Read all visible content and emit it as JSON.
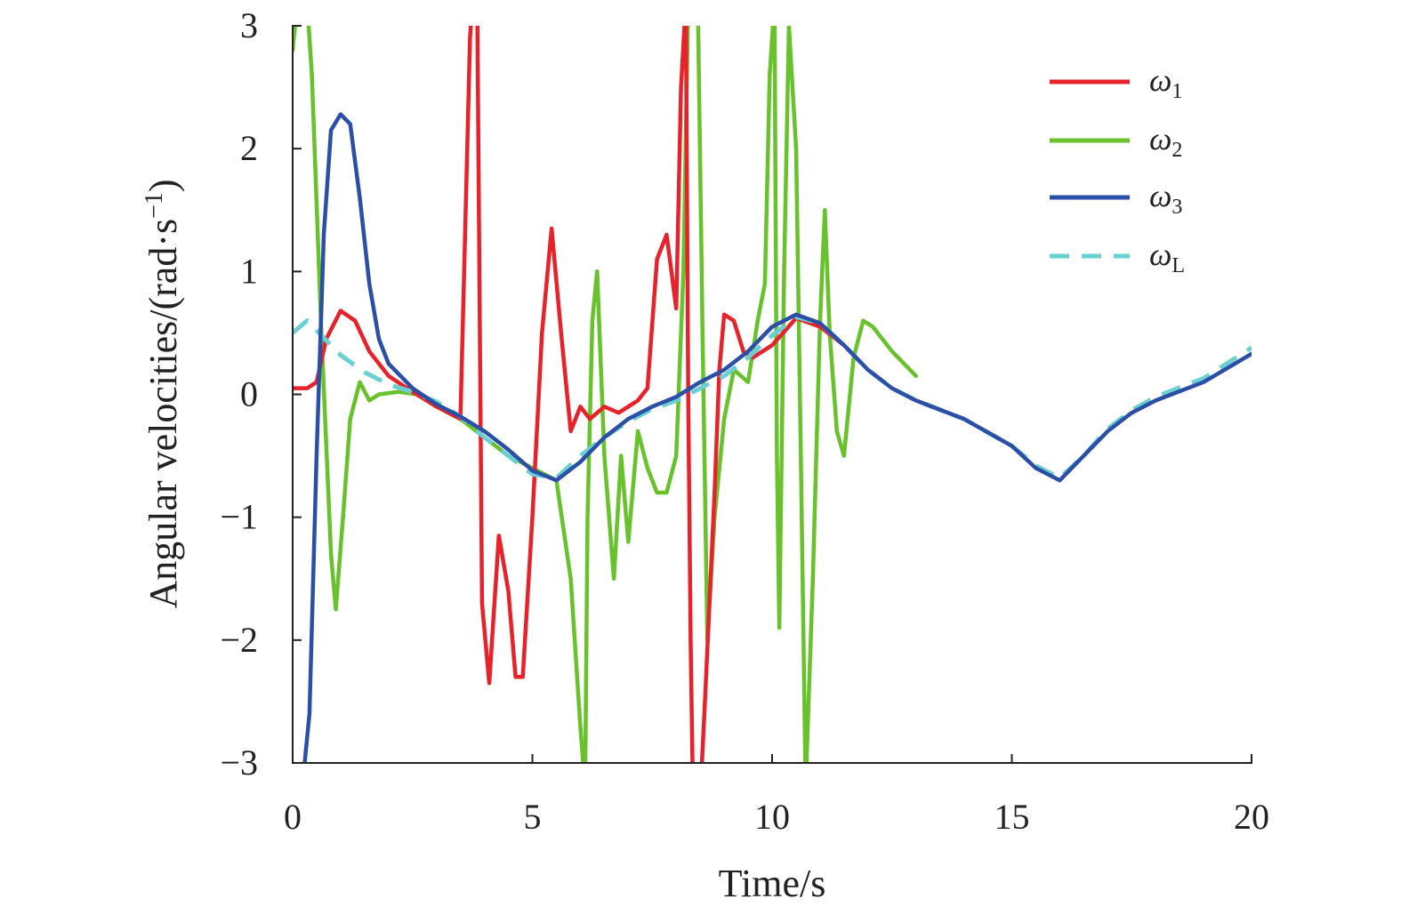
{
  "chart_data": {
    "type": "line",
    "title": "",
    "xlabel": "Time/s",
    "ylabel": "Angular velocities/(rad·s",
    "ylabel_sup": "−1",
    "ylabel_close": ")",
    "xlim": [
      0,
      20
    ],
    "ylim": [
      -3,
      3
    ],
    "xticks": [
      0,
      5,
      10,
      15,
      20
    ],
    "xtick_labels": [
      "0",
      "5",
      "10",
      "15",
      "20"
    ],
    "yticks": [
      -3,
      -2,
      -1,
      0,
      1,
      2,
      3
    ],
    "ytick_labels": [
      "−3",
      "−2",
      "−1",
      "0",
      "1",
      "2",
      "3"
    ],
    "grid": false,
    "legend_position": "top-right",
    "series": [
      {
        "name": "ω1",
        "symbol": "ω",
        "sub": "1",
        "color": "#e8222b",
        "dash": false,
        "points": [
          [
            0,
            0.05
          ],
          [
            0.3,
            0.05
          ],
          [
            0.5,
            0.1
          ],
          [
            0.7,
            0.45
          ],
          [
            1.0,
            0.68
          ],
          [
            1.3,
            0.6
          ],
          [
            1.6,
            0.35
          ],
          [
            2.0,
            0.15
          ],
          [
            2.5,
            0.02
          ],
          [
            3.0,
            -0.1
          ],
          [
            3.5,
            -0.2
          ],
          [
            3.7,
            2.9
          ],
          [
            3.75,
            3.2
          ],
          [
            3.85,
            3.2
          ],
          [
            3.95,
            -1.7
          ],
          [
            4.1,
            -2.35
          ],
          [
            4.3,
            -1.15
          ],
          [
            4.5,
            -1.6
          ],
          [
            4.65,
            -2.3
          ],
          [
            4.8,
            -2.3
          ],
          [
            5.0,
            -1.0
          ],
          [
            5.2,
            0.5
          ],
          [
            5.4,
            1.35
          ],
          [
            5.6,
            0.5
          ],
          [
            5.8,
            -0.3
          ],
          [
            6.0,
            -0.1
          ],
          [
            6.2,
            -0.2
          ],
          [
            6.5,
            -0.1
          ],
          [
            6.8,
            -0.15
          ],
          [
            7.0,
            -0.1
          ],
          [
            7.2,
            -0.05
          ],
          [
            7.4,
            0.05
          ],
          [
            7.6,
            1.1
          ],
          [
            7.8,
            1.3
          ],
          [
            7.9,
            1.0
          ],
          [
            8.0,
            0.7
          ],
          [
            8.1,
            2.5
          ],
          [
            8.2,
            3.2
          ],
          [
            8.25,
            0.0
          ],
          [
            8.3,
            -2.0
          ],
          [
            8.35,
            -3.3
          ],
          [
            8.5,
            -3.3
          ],
          [
            8.6,
            -2.5
          ],
          [
            8.8,
            -0.8
          ],
          [
            8.9,
            0.2
          ],
          [
            9.0,
            0.65
          ],
          [
            9.2,
            0.6
          ],
          [
            9.4,
            0.35
          ],
          [
            9.6,
            0.3
          ],
          [
            10.0,
            0.4
          ],
          [
            10.5,
            0.62
          ],
          [
            11.0,
            0.55
          ],
          [
            11.5,
            0.4
          ]
        ]
      },
      {
        "name": "ω2",
        "symbol": "ω",
        "sub": "2",
        "color": "#67c22b",
        "dash": false,
        "points": [
          [
            0,
            2.8
          ],
          [
            0.1,
            3.2
          ],
          [
            0.3,
            3.2
          ],
          [
            0.4,
            2.6
          ],
          [
            0.6,
            0.5
          ],
          [
            0.8,
            -1.3
          ],
          [
            0.9,
            -1.75
          ],
          [
            1.05,
            -1.0
          ],
          [
            1.2,
            -0.2
          ],
          [
            1.4,
            0.1
          ],
          [
            1.6,
            -0.05
          ],
          [
            1.8,
            0.0
          ],
          [
            2.2,
            0.02
          ],
          [
            2.6,
            0.0
          ],
          [
            3.0,
            -0.1
          ],
          [
            3.5,
            -0.2
          ],
          [
            4.0,
            -0.35
          ],
          [
            4.5,
            -0.5
          ],
          [
            5.0,
            -0.6
          ],
          [
            5.5,
            -0.7
          ],
          [
            5.8,
            -1.5
          ],
          [
            6.0,
            -2.7
          ],
          [
            6.1,
            -3.2
          ],
          [
            6.15,
            -1.0
          ],
          [
            6.25,
            0.6
          ],
          [
            6.35,
            1.0
          ],
          [
            6.5,
            -0.5
          ],
          [
            6.7,
            -1.5
          ],
          [
            6.85,
            -0.5
          ],
          [
            7.0,
            -1.2
          ],
          [
            7.2,
            -0.3
          ],
          [
            7.4,
            -0.6
          ],
          [
            7.6,
            -0.8
          ],
          [
            7.8,
            -0.8
          ],
          [
            8.0,
            -0.5
          ],
          [
            8.15,
            1.0
          ],
          [
            8.25,
            3.2
          ],
          [
            8.45,
            3.2
          ],
          [
            8.55,
            0.5
          ],
          [
            8.65,
            -2.0
          ],
          [
            8.8,
            -1.0
          ],
          [
            9.0,
            -0.2
          ],
          [
            9.2,
            0.2
          ],
          [
            9.5,
            0.1
          ],
          [
            9.7,
            0.6
          ],
          [
            9.85,
            0.9
          ],
          [
            9.95,
            2.6
          ],
          [
            10.05,
            3.2
          ],
          [
            10.1,
            -0.5
          ],
          [
            10.15,
            -1.9
          ],
          [
            10.25,
            1.0
          ],
          [
            10.35,
            3.0
          ],
          [
            10.5,
            2.0
          ],
          [
            10.6,
            -0.5
          ],
          [
            10.7,
            -3.2
          ],
          [
            10.85,
            -1.5
          ],
          [
            11.0,
            0.6
          ],
          [
            11.1,
            1.5
          ],
          [
            11.2,
            0.5
          ],
          [
            11.35,
            -0.3
          ],
          [
            11.5,
            -0.5
          ],
          [
            11.7,
            0.3
          ],
          [
            11.9,
            0.6
          ],
          [
            12.1,
            0.55
          ],
          [
            12.5,
            0.35
          ],
          [
            13.0,
            0.15
          ]
        ]
      },
      {
        "name": "ω3",
        "symbol": "ω",
        "sub": "3",
        "color": "#2b4fa6",
        "dash": false,
        "points": [
          [
            0,
            -3.2
          ],
          [
            0.2,
            -3.2
          ],
          [
            0.35,
            -2.6
          ],
          [
            0.5,
            -0.5
          ],
          [
            0.65,
            1.3
          ],
          [
            0.8,
            2.15
          ],
          [
            1.0,
            2.28
          ],
          [
            1.2,
            2.2
          ],
          [
            1.4,
            1.6
          ],
          [
            1.6,
            0.9
          ],
          [
            1.8,
            0.45
          ],
          [
            2.0,
            0.25
          ],
          [
            2.5,
            0.05
          ],
          [
            3.0,
            -0.08
          ],
          [
            3.5,
            -0.18
          ],
          [
            4.0,
            -0.3
          ],
          [
            4.5,
            -0.45
          ],
          [
            5.0,
            -0.62
          ],
          [
            5.5,
            -0.7
          ],
          [
            6.0,
            -0.55
          ],
          [
            6.5,
            -0.35
          ],
          [
            7.0,
            -0.2
          ],
          [
            7.5,
            -0.1
          ],
          [
            8.0,
            -0.02
          ],
          [
            8.5,
            0.1
          ],
          [
            9.0,
            0.2
          ],
          [
            9.5,
            0.35
          ],
          [
            10.0,
            0.55
          ],
          [
            10.5,
            0.65
          ],
          [
            11.0,
            0.58
          ],
          [
            11.5,
            0.4
          ],
          [
            12.0,
            0.2
          ],
          [
            12.5,
            0.05
          ],
          [
            13.0,
            -0.05
          ],
          [
            14.0,
            -0.2
          ],
          [
            15.0,
            -0.42
          ],
          [
            15.5,
            -0.6
          ],
          [
            16.0,
            -0.7
          ],
          [
            16.5,
            -0.5
          ],
          [
            17.0,
            -0.3
          ],
          [
            17.5,
            -0.15
          ],
          [
            18.0,
            -0.05
          ],
          [
            19.0,
            0.1
          ],
          [
            20.0,
            0.33
          ]
        ]
      },
      {
        "name": "ωL",
        "symbol": "ω",
        "sub": "L",
        "color": "#6ccfd1",
        "dash": true,
        "points": [
          [
            0,
            0.5
          ],
          [
            0.3,
            0.6
          ],
          [
            0.6,
            0.48
          ],
          [
            1.0,
            0.32
          ],
          [
            1.5,
            0.18
          ],
          [
            2.0,
            0.08
          ],
          [
            2.5,
            0.02
          ],
          [
            3.0,
            -0.06
          ],
          [
            3.5,
            -0.18
          ],
          [
            4.0,
            -0.35
          ],
          [
            4.5,
            -0.5
          ],
          [
            5.0,
            -0.65
          ],
          [
            5.5,
            -0.68
          ],
          [
            6.0,
            -0.5
          ],
          [
            6.5,
            -0.35
          ],
          [
            7.0,
            -0.22
          ],
          [
            7.5,
            -0.12
          ],
          [
            8.0,
            -0.05
          ],
          [
            8.5,
            0.05
          ],
          [
            9.0,
            0.15
          ],
          [
            9.5,
            0.3
          ],
          [
            10.0,
            0.48
          ],
          [
            10.5,
            0.63
          ],
          [
            11.0,
            0.58
          ],
          [
            11.5,
            0.4
          ],
          [
            12.0,
            0.2
          ],
          [
            12.5,
            0.05
          ],
          [
            13.0,
            -0.05
          ],
          [
            14.0,
            -0.2
          ],
          [
            15.0,
            -0.42
          ],
          [
            15.5,
            -0.58
          ],
          [
            16.0,
            -0.68
          ],
          [
            16.5,
            -0.5
          ],
          [
            17.0,
            -0.28
          ],
          [
            17.5,
            -0.13
          ],
          [
            18.0,
            -0.02
          ],
          [
            19.0,
            0.13
          ],
          [
            20.0,
            0.38
          ]
        ]
      }
    ]
  }
}
